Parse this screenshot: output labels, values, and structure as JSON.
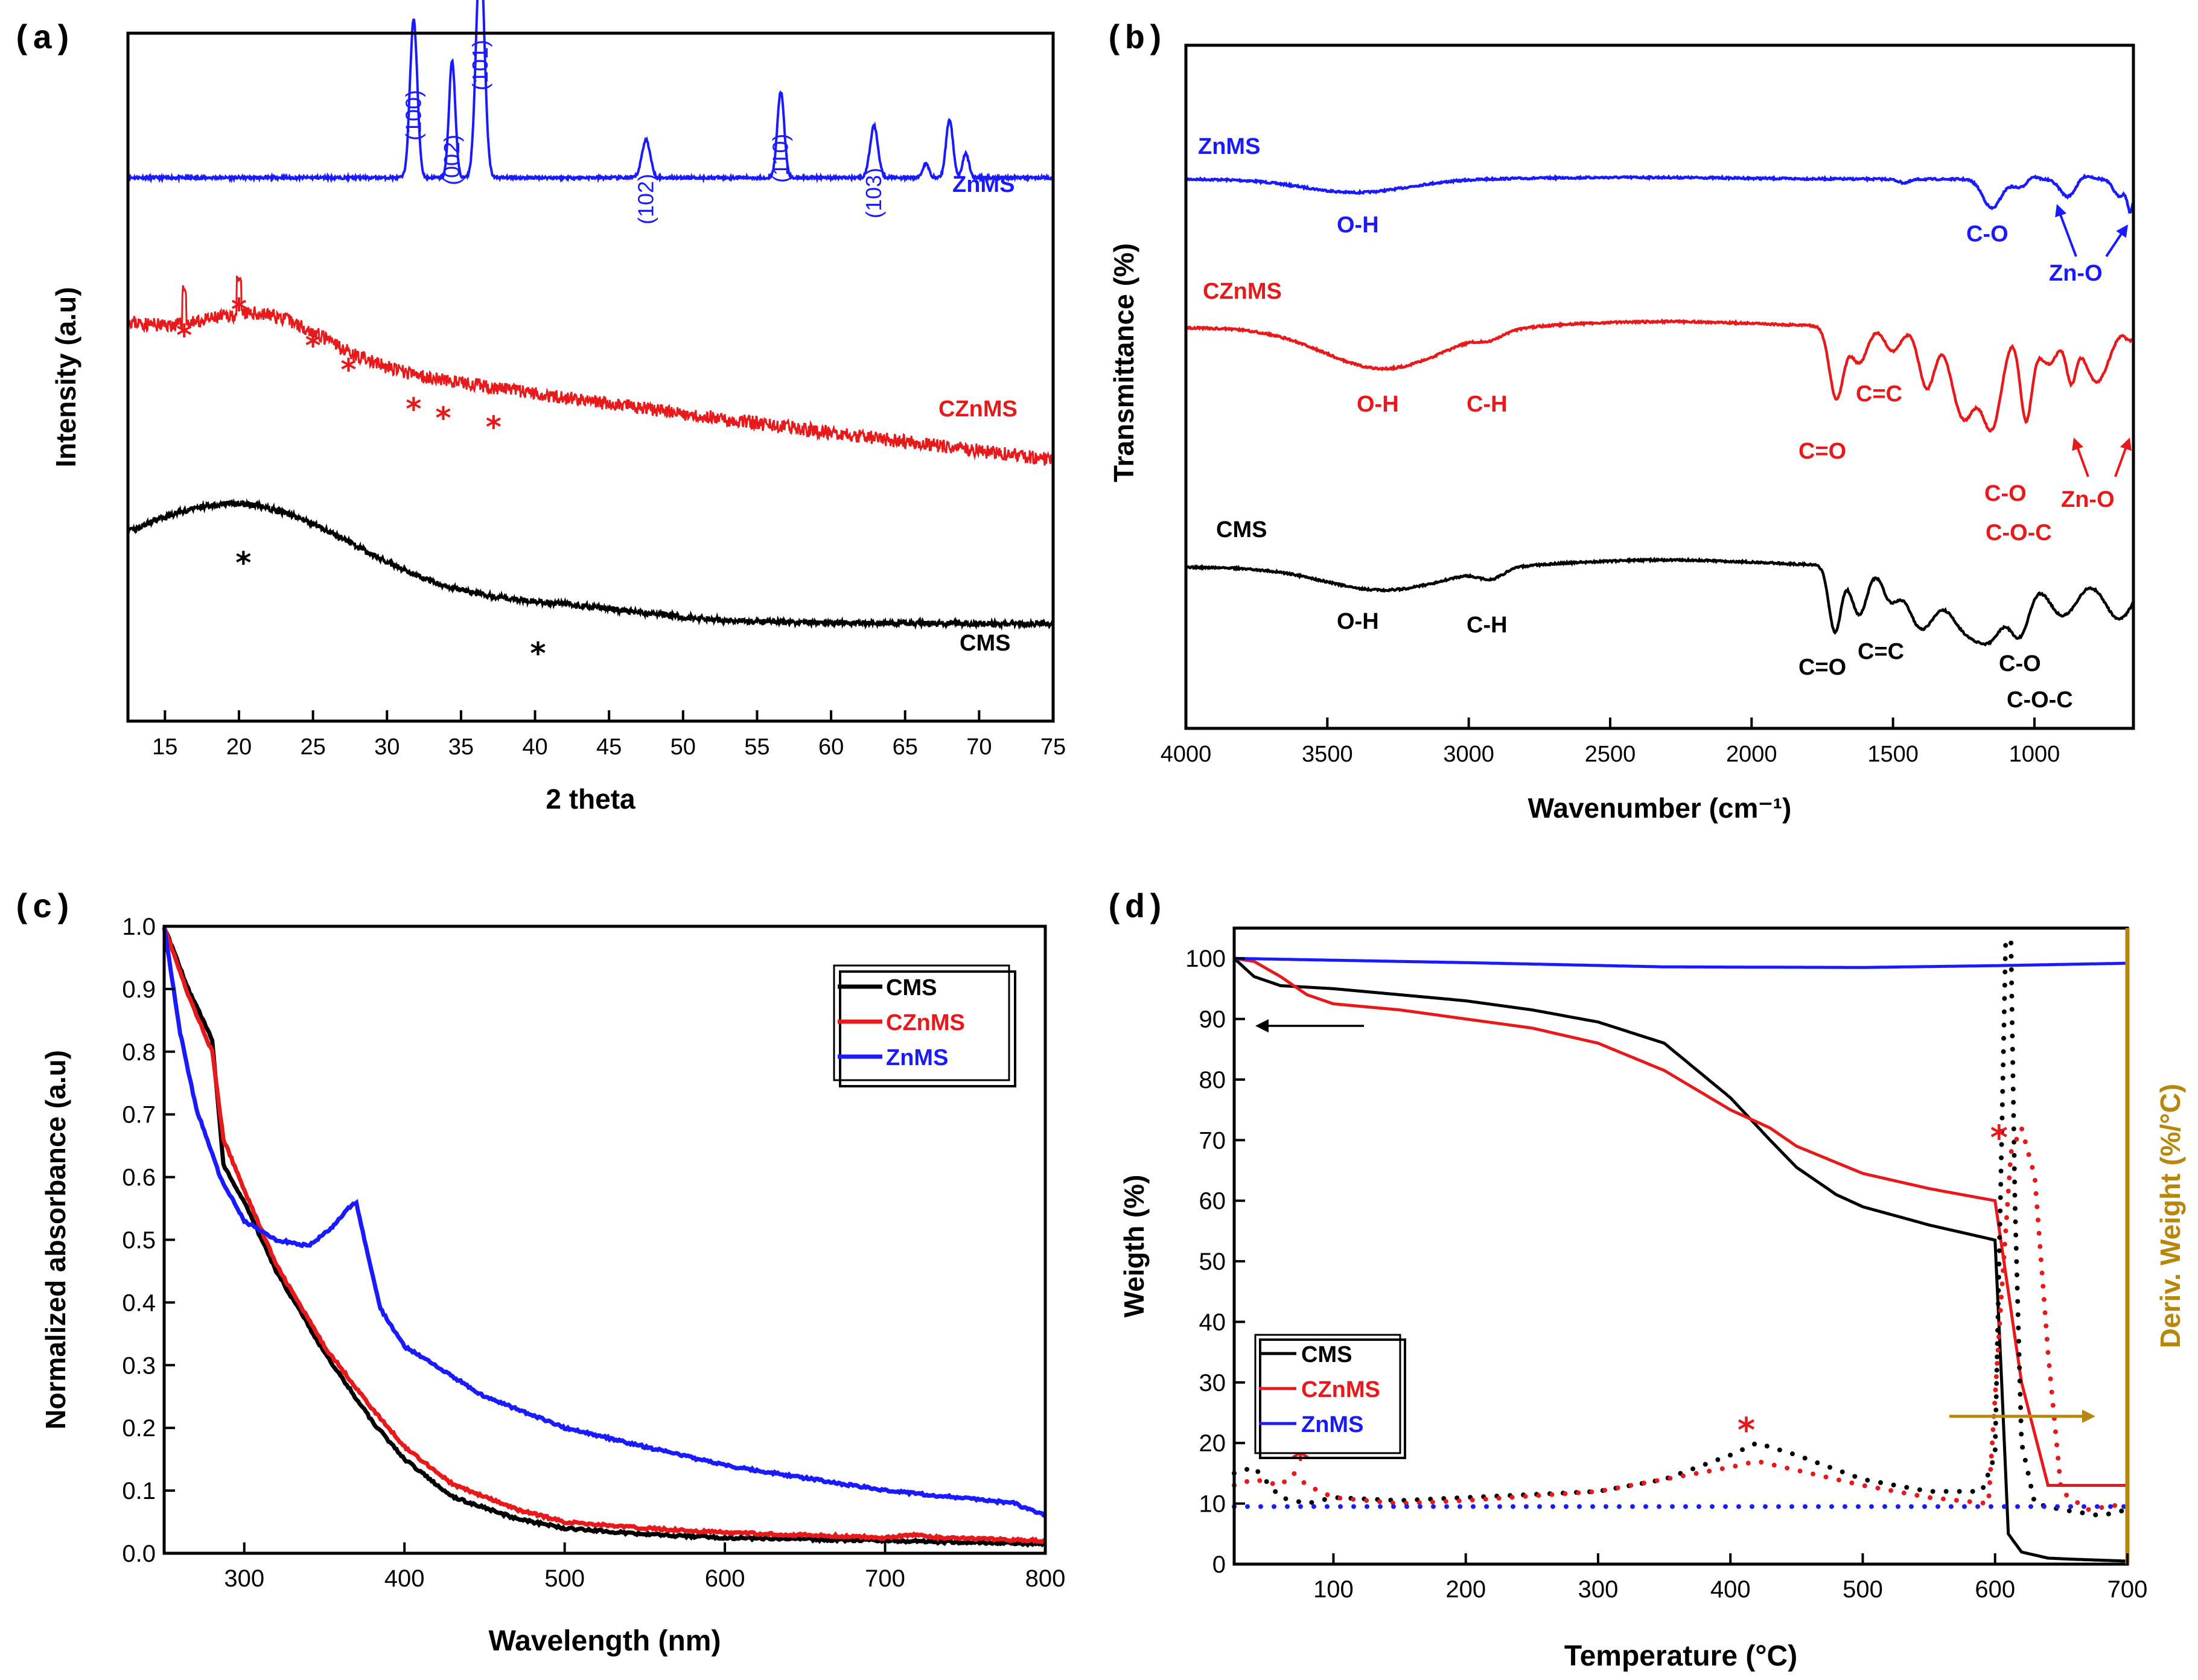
{
  "colors": {
    "cms": "#000000",
    "czn": "#e8191b",
    "zn": "#1a1aff",
    "deriv": "#b8860b"
  },
  "chart_data": [
    {
      "panel": "(a)",
      "type": "line",
      "xlabel": "2 theta",
      "ylabel": "Intensity (a.u)",
      "xlim": [
        12.5,
        75
      ],
      "ylim": [
        0,
        10
      ],
      "xticks": [
        "15",
        "20",
        "25",
        "30",
        "35",
        "40",
        "45",
        "50",
        "55",
        "60",
        "65",
        "70",
        "75"
      ],
      "xtick_values": [
        15,
        20,
        25,
        30,
        35,
        40,
        45,
        50,
        55,
        60,
        65,
        70,
        75
      ],
      "series": [
        {
          "name": "ZnMS",
          "color": "#1a1aff",
          "baseline": 7.9,
          "noise": 0.02,
          "peaks": [
            [
              31.8,
              2.3,
              0.35
            ],
            [
              34.4,
              1.7,
              0.3
            ],
            [
              36.3,
              3.3,
              0.4
            ],
            [
              47.5,
              0.55,
              0.4
            ],
            [
              56.6,
              1.25,
              0.33
            ],
            [
              62.9,
              0.75,
              0.38
            ],
            [
              66.4,
              0.2,
              0.3
            ],
            [
              68.0,
              0.85,
              0.33
            ],
            [
              69.1,
              0.35,
              0.3
            ]
          ]
        },
        {
          "name": "CZnMS",
          "color": "#e8191b",
          "start": 5.8,
          "end": 3.8,
          "noise": 0.1
        },
        {
          "name": "CMS",
          "color": "#000000",
          "hump_center": 20,
          "hump_height": 2.7,
          "end": 1.4,
          "noise": 0.04
        }
      ],
      "series_labels": [
        "ZnMS",
        "CZnMS",
        "CMS"
      ],
      "peak_labels": [
        "(100)",
        "(002)",
        "(101)",
        "(102)",
        "(110)",
        "(103)"
      ],
      "peak_label_positions": [
        31.8,
        34.4,
        36.3,
        47.5,
        56.6,
        62.9
      ],
      "star_positions_czn": [
        16.3,
        20.0,
        25.0,
        27.4,
        31.8,
        33.8,
        37.2
      ],
      "star_positions_cms": [
        20.3,
        40.2
      ]
    },
    {
      "panel": "(b)",
      "type": "line",
      "xlabel": "Wavenumber (cm⁻¹)",
      "ylabel": "Transmittance (%)",
      "xlim": [
        4000,
        650
      ],
      "xticks": [
        "4000",
        "3500",
        "3000",
        "2500",
        "2000",
        "1500",
        "1000"
      ],
      "xtick_values": [
        4000,
        3500,
        3000,
        2500,
        2000,
        1500,
        1000
      ],
      "series": [
        {
          "name": "ZnMS",
          "color": "#1a1aff"
        },
        {
          "name": "CZnMS",
          "color": "#e8191b"
        },
        {
          "name": "CMS",
          "color": "#000000"
        }
      ],
      "series_labels": [
        "ZnMS",
        "CZnMS",
        "CMS"
      ],
      "band_labels_zn": [
        "O-H",
        "C-O",
        "Zn-O"
      ],
      "band_labels_czn": [
        "O-H",
        "C-H",
        "C=O",
        "C=C",
        "C-O",
        "C-O-C",
        "Zn-O"
      ],
      "band_labels_cms": [
        "O-H",
        "C-H",
        "C=O",
        "C=C",
        "C-O",
        "C-O-C"
      ]
    },
    {
      "panel": "(c)",
      "type": "line",
      "xlabel": "Wavelength (nm)",
      "ylabel": "Normalized absorbance (a.u)",
      "xlim": [
        250,
        800
      ],
      "ylim": [
        0,
        1.0
      ],
      "xticks": [
        "300",
        "400",
        "500",
        "600",
        "700",
        "800"
      ],
      "xtick_values": [
        300,
        400,
        500,
        600,
        700,
        800
      ],
      "yticks": [
        "0.0",
        "0.1",
        "0.2",
        "0.3",
        "0.4",
        "0.5",
        "0.6",
        "0.7",
        "0.8",
        "0.9",
        "1.0"
      ],
      "ytick_values": [
        0,
        0.1,
        0.2,
        0.3,
        0.4,
        0.5,
        0.6,
        0.7,
        0.8,
        0.9,
        1.0
      ],
      "series": [
        {
          "name": "CMS",
          "color": "#000000",
          "x": [
            250,
            265,
            280,
            287,
            300,
            320,
            350,
            380,
            400,
            430,
            470,
            500,
            550,
            600,
            700,
            800
          ],
          "y": [
            1.0,
            0.9,
            0.82,
            0.62,
            0.56,
            0.45,
            0.32,
            0.21,
            0.15,
            0.09,
            0.055,
            0.04,
            0.03,
            0.025,
            0.02,
            0.015
          ]
        },
        {
          "name": "CZnMS",
          "color": "#e8191b",
          "x": [
            250,
            265,
            280,
            287,
            300,
            320,
            350,
            380,
            400,
            430,
            470,
            500,
            550,
            600,
            700,
            720,
            730,
            800
          ],
          "y": [
            1.0,
            0.89,
            0.8,
            0.66,
            0.58,
            0.46,
            0.33,
            0.23,
            0.17,
            0.11,
            0.07,
            0.05,
            0.04,
            0.033,
            0.025,
            0.03,
            0.025,
            0.02
          ]
        },
        {
          "name": "ZnMS",
          "color": "#1a1aff",
          "x": [
            250,
            260,
            270,
            285,
            300,
            320,
            340,
            355,
            365,
            370,
            375,
            385,
            400,
            450,
            500,
            600,
            700,
            780,
            800
          ],
          "y": [
            1.0,
            0.83,
            0.71,
            0.6,
            0.53,
            0.5,
            0.49,
            0.52,
            0.55,
            0.56,
            0.5,
            0.39,
            0.33,
            0.25,
            0.2,
            0.14,
            0.1,
            0.08,
            0.06
          ]
        }
      ],
      "legend": [
        "CMS",
        "CZnMS",
        "ZnMS"
      ]
    },
    {
      "panel": "(d)",
      "type": "line",
      "xlabel": "Temperature (°C)",
      "ylabel": "Weigth (%)",
      "y2label": "Deriv. Weight (%/°C)",
      "xlim": [
        25,
        700
      ],
      "ylim": [
        0,
        105
      ],
      "xticks": [
        "100",
        "200",
        "300",
        "400",
        "500",
        "600",
        "700"
      ],
      "xtick_values": [
        100,
        200,
        300,
        400,
        500,
        600,
        700
      ],
      "yticks": [
        "0",
        "10",
        "20",
        "30",
        "40",
        "50",
        "60",
        "70",
        "80",
        "90",
        "100"
      ],
      "ytick_values": [
        0,
        10,
        20,
        30,
        40,
        50,
        60,
        70,
        80,
        90,
        100
      ],
      "series": [
        {
          "name": "CMS",
          "color": "#000000",
          "x": [
            25,
            40,
            60,
            100,
            150,
            200,
            250,
            300,
            350,
            400,
            430,
            450,
            480,
            500,
            550,
            590,
            600,
            605,
            610,
            620,
            640,
            660,
            700
          ],
          "y": [
            100,
            97,
            95.5,
            95,
            94,
            93,
            91.5,
            89.5,
            86,
            77,
            70,
            65.5,
            61,
            59,
            56,
            54,
            53.5,
            30,
            5,
            2,
            1,
            0.8,
            0.5
          ]
        },
        {
          "name": "CZnMS",
          "color": "#e8191b",
          "x": [
            25,
            40,
            60,
            80,
            100,
            150,
            200,
            250,
            300,
            350,
            400,
            430,
            450,
            500,
            550,
            600,
            610,
            620,
            640,
            660,
            700
          ],
          "y": [
            100,
            99.5,
            97,
            94,
            92.5,
            91.5,
            90,
            88.5,
            86,
            81.5,
            75,
            72,
            69,
            64.5,
            62,
            60,
            45,
            30,
            13,
            13,
            13
          ]
        },
        {
          "name": "ZnMS",
          "color": "#1a1aff",
          "x": [
            25,
            200,
            350,
            500,
            600,
            700
          ],
          "y": [
            100,
            99.3,
            98.6,
            98.5,
            98.8,
            99.2
          ]
        },
        {
          "name": "CMS deriv.",
          "color": "#000000",
          "style": "dotted",
          "x": [
            25,
            40,
            60,
            80,
            100,
            150,
            200,
            300,
            350,
            400,
            420,
            450,
            500,
            550,
            590,
            600,
            605,
            608,
            612,
            615,
            620,
            630,
            650,
            680,
            700
          ],
          "y": [
            15,
            16,
            11,
            10,
            11,
            10.5,
            11,
            12,
            14,
            18,
            20,
            18,
            14,
            12,
            12,
            18,
            70,
            103,
            103,
            60,
            20,
            10,
            9,
            8,
            9
          ]
        },
        {
          "name": "CZnMS deriv.",
          "color": "#e8191b",
          "style": "dotted",
          "x": [
            25,
            40,
            60,
            70,
            80,
            100,
            150,
            200,
            300,
            350,
            400,
            420,
            450,
            500,
            550,
            595,
            605,
            612,
            620,
            630,
            640,
            650,
            670,
            700
          ],
          "y": [
            13,
            14,
            13,
            15,
            13,
            11,
            10,
            10.5,
            12,
            14,
            16,
            17,
            15.5,
            13,
            11,
            10,
            45,
            68,
            72,
            64,
            35,
            12,
            9,
            10
          ]
        },
        {
          "name": "ZnMS deriv.",
          "color": "#1a1aff",
          "style": "dotted",
          "x": [
            25,
            700
          ],
          "y": [
            9.5,
            9.5
          ]
        }
      ],
      "legend": [
        "CMS",
        "CZnMS",
        "ZnMS"
      ]
    }
  ]
}
